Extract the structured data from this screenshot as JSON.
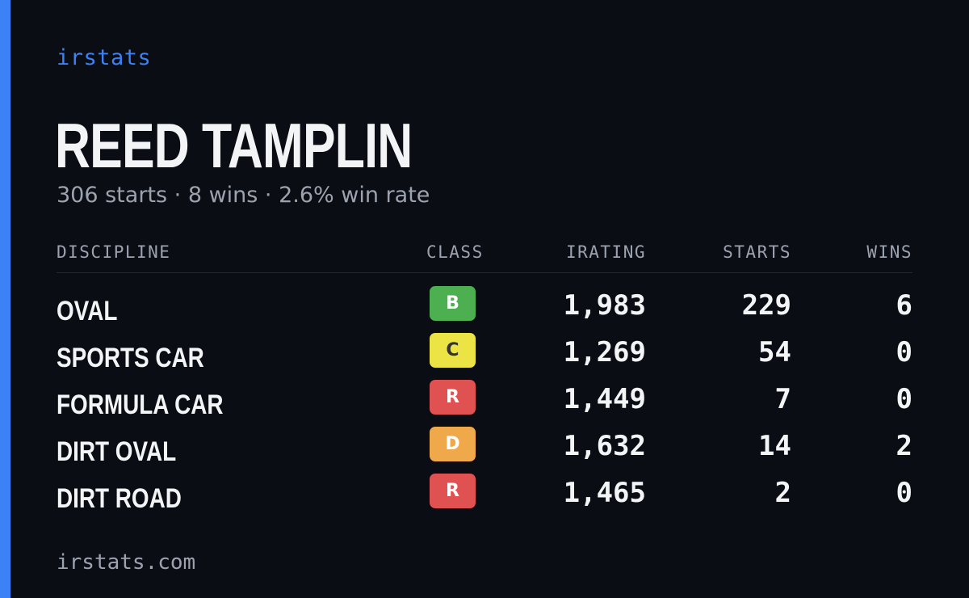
{
  "brand": "irstats",
  "player": {
    "name": "REED TAMPLIN",
    "summary": "306 starts · 8 wins · 2.6% win rate"
  },
  "table": {
    "headers": {
      "discipline": "DISCIPLINE",
      "class": "CLASS",
      "irating": "IRATING",
      "starts": "STARTS",
      "wins": "WINS"
    },
    "rows": [
      {
        "discipline": "OVAL",
        "class": "B",
        "class_bg": "#4caf50",
        "class_fg": "#ffffff",
        "irating": "1,983",
        "starts": "229",
        "wins": "6"
      },
      {
        "discipline": "SPORTS CAR",
        "class": "C",
        "class_bg": "#ece445",
        "class_fg": "#333333",
        "irating": "1,269",
        "starts": "54",
        "wins": "0"
      },
      {
        "discipline": "FORMULA CAR",
        "class": "R",
        "class_bg": "#e05252",
        "class_fg": "#ffffff",
        "irating": "1,449",
        "starts": "7",
        "wins": "0"
      },
      {
        "discipline": "DIRT OVAL",
        "class": "D",
        "class_bg": "#f0a94a",
        "class_fg": "#ffffff",
        "irating": "1,632",
        "starts": "14",
        "wins": "2"
      },
      {
        "discipline": "DIRT ROAD",
        "class": "R",
        "class_bg": "#e05252",
        "class_fg": "#ffffff",
        "irating": "1,465",
        "starts": "2",
        "wins": "0"
      }
    ]
  },
  "footer": {
    "url": "irstats.com"
  },
  "colors": {
    "background": "#0a0d14",
    "accent": "#3b82f6",
    "text_primary": "#f3f4f6",
    "text_muted": "#9ca3af"
  }
}
